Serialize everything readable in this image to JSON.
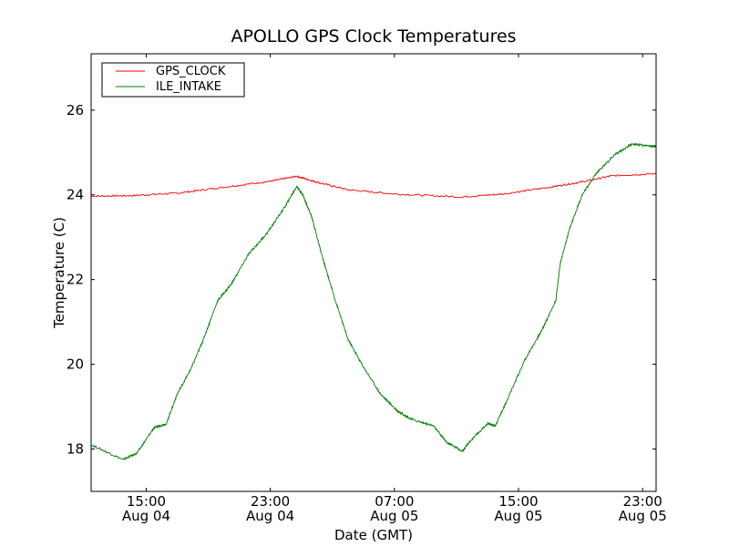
{
  "chart_data": {
    "type": "line",
    "title": "APOLLO GPS Clock Temperatures",
    "xlabel": "Date (GMT)",
    "ylabel": "Temperature (C)",
    "x_units": "hours since Aug 04 00:00 GMT",
    "xlim": [
      11.45,
      47.87
    ],
    "ylim": [
      17.0,
      27.33
    ],
    "grid": false,
    "legend_placement": "top-left",
    "yticks": [
      18,
      20,
      22,
      24,
      26
    ],
    "xticks": [
      {
        "value": 15,
        "time": "15:00",
        "date": "Aug 04"
      },
      {
        "value": 23,
        "time": "23:00",
        "date": "Aug 04"
      },
      {
        "value": 31,
        "time": "07:00",
        "date": "Aug 05"
      },
      {
        "value": 39,
        "time": "15:00",
        "date": "Aug 05"
      },
      {
        "value": 47,
        "time": "23:00",
        "date": "Aug 05"
      }
    ],
    "series": [
      {
        "name": "GPS_CLOCK",
        "color": "#ff0000",
        "x": [
          11.45,
          14,
          17,
          20,
          23,
          24.7,
          26,
          28,
          31,
          35.3,
          38,
          41,
          43,
          45,
          47.87
        ],
        "y": [
          23.97,
          23.98,
          24.04,
          24.18,
          24.32,
          24.44,
          24.3,
          24.12,
          24.02,
          23.95,
          24.02,
          24.18,
          24.3,
          24.45,
          24.5
        ]
      },
      {
        "name": "ILE_INTAKE",
        "color": "#008000",
        "x": [
          11.45,
          13.5,
          14.4,
          15.5,
          16.3,
          17,
          17.9,
          18.7,
          19.6,
          20.5,
          21.6,
          22.8,
          24,
          24.7,
          25.1,
          25.7,
          26.3,
          27.2,
          28,
          28.9,
          30.1,
          31.2,
          32.1,
          33.5,
          34.4,
          35.4,
          35.8,
          37,
          37.5,
          38.2,
          39.4,
          40.5,
          41.4,
          41.7,
          42.3,
          43.1,
          44,
          45.2,
          46.3,
          47.5,
          47.87
        ],
        "y": [
          18.1,
          17.75,
          17.9,
          18.5,
          18.6,
          19.3,
          19.9,
          20.6,
          21.5,
          21.9,
          22.6,
          23.1,
          23.75,
          24.2,
          24.0,
          23.45,
          22.6,
          21.5,
          20.6,
          20.0,
          19.3,
          18.9,
          18.7,
          18.55,
          18.15,
          17.95,
          18.15,
          18.6,
          18.55,
          19.1,
          20.1,
          20.8,
          21.5,
          22.4,
          23.2,
          24.0,
          24.5,
          24.95,
          25.2,
          25.15,
          25.15
        ]
      }
    ]
  }
}
